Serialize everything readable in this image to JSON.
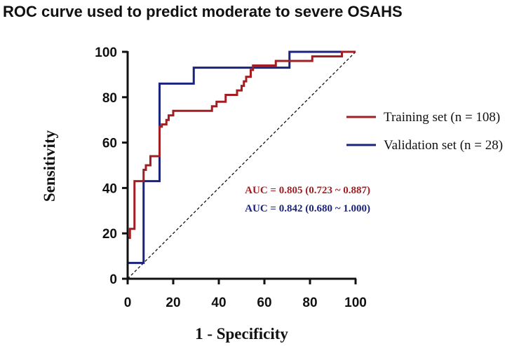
{
  "chart_data": {
    "type": "line",
    "title": "ROC curve used to predict moderate to severe OSAHS",
    "xlabel": "1 - Specificity",
    "ylabel": "Sensitivity",
    "xlim": [
      0,
      100
    ],
    "ylim": [
      0,
      100
    ],
    "xticks": [
      "0",
      "20",
      "40",
      "60",
      "80",
      "100"
    ],
    "yticks": [
      "0",
      "20",
      "40",
      "60",
      "80",
      "100"
    ],
    "legend_position": "right",
    "series": [
      {
        "name": "Training set (n = 108)",
        "color": "#a31e22",
        "auc_label": "AUC = 0.805 (0.723 ~ 0.887)",
        "x": [
          0,
          0,
          1,
          1,
          3,
          3,
          4,
          4,
          7,
          7,
          8,
          8,
          10,
          10,
          11,
          11,
          14,
          14,
          15,
          15,
          17,
          17,
          18,
          18,
          20,
          20,
          22,
          22,
          37,
          37,
          39,
          39,
          43,
          43,
          48,
          48,
          50,
          50,
          51,
          51,
          52,
          52,
          54,
          54,
          55,
          55,
          65,
          65,
          68,
          68,
          81,
          81,
          94,
          94,
          100
        ],
        "y": [
          0,
          18,
          18,
          22,
          22,
          43,
          43,
          43,
          43,
          48,
          48,
          50,
          50,
          54,
          54,
          54,
          54,
          67,
          67,
          68,
          68,
          70,
          70,
          72,
          72,
          74,
          74,
          74,
          74,
          76,
          76,
          78,
          78,
          81,
          81,
          83,
          83,
          85,
          85,
          87,
          87,
          89,
          89,
          92,
          92,
          94,
          94,
          96,
          96,
          96,
          96,
          98,
          98,
          100,
          100
        ]
      },
      {
        "name": "Validation set (n = 28)",
        "color": "#1a237e",
        "auc_label": "AUC = 0.842 (0.680 ~ 1.000)",
        "x": [
          0,
          0,
          7,
          7,
          14,
          14,
          29,
          29,
          71,
          71,
          100
        ],
        "y": [
          0,
          7,
          7,
          43,
          43,
          86,
          86,
          93,
          93,
          100,
          100
        ]
      }
    ],
    "reference_line": {
      "style": "dashed",
      "from": [
        0,
        0
      ],
      "to": [
        100,
        100
      ]
    }
  }
}
